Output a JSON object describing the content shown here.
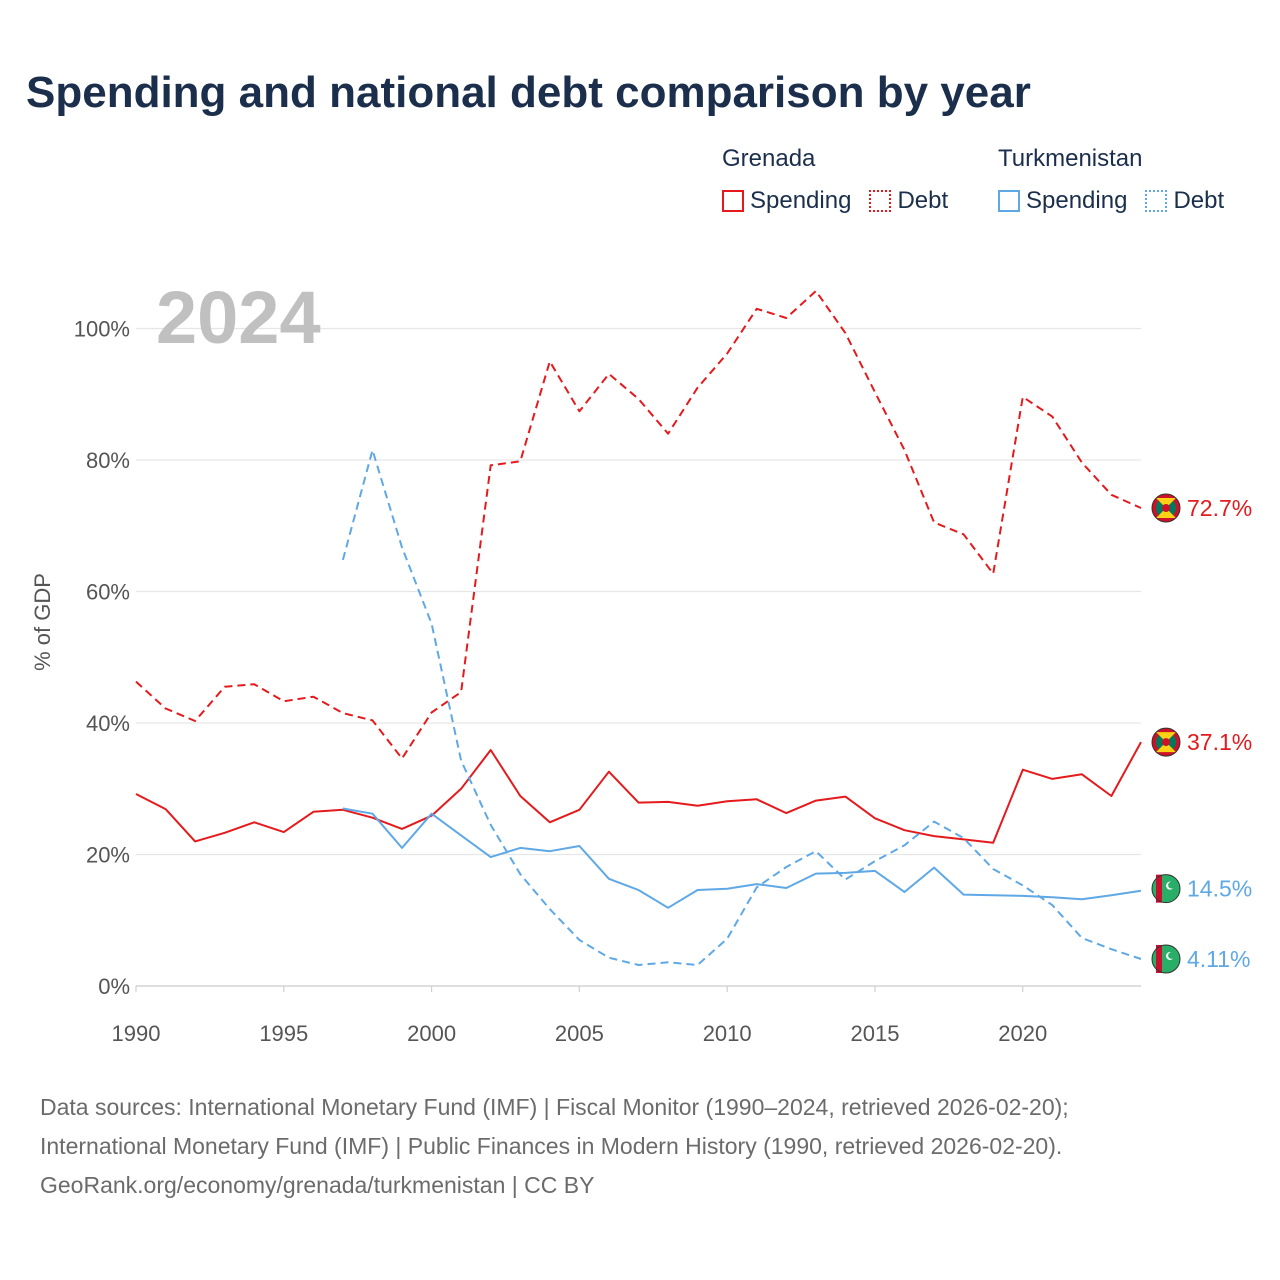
{
  "title": "Spending and national debt comparison by year",
  "legend": {
    "groups": [
      {
        "name": "Grenada",
        "color": "#e41a1c",
        "spending_label": "Spending",
        "debt_label": "Debt"
      },
      {
        "name": "Turkmenistan",
        "color": "#5fa8e6",
        "spending_label": "Spending",
        "debt_label": "Debt"
      }
    ]
  },
  "source": {
    "line1": "Data sources: International Monetary Fund (IMF) | Fiscal Monitor (1990–2024, retrieved 2026-02-20);",
    "line2": "International Monetary Fund (IMF) | Public Finances in Modern History (1990, retrieved 2026-02-20).",
    "line3": "GeoRank.org/economy/grenada/turkmenistan | CC BY"
  },
  "chart_data": {
    "type": "line",
    "title": "Spending and national debt comparison by year",
    "current_year_label": "2024",
    "xlabel": "",
    "ylabel": "% of GDP",
    "xlim": [
      1990,
      2024
    ],
    "ylim": [
      0,
      110
    ],
    "x_ticks": [
      1990,
      1995,
      2000,
      2005,
      2010,
      2015,
      2020
    ],
    "y_ticks": [
      0,
      20,
      40,
      60,
      80,
      100
    ],
    "y_tick_labels": [
      "0%",
      "20%",
      "40%",
      "60%",
      "80%",
      "100%"
    ],
    "grid": "horizontal",
    "series": [
      {
        "name": "Grenada Debt",
        "country": "Grenada",
        "style": "dashed",
        "color": "#e41a1c",
        "x": [
          1990,
          1991,
          1992,
          1993,
          1994,
          1995,
          1996,
          1997,
          1998,
          1999,
          2000,
          2001,
          2002,
          2003,
          2004,
          2005,
          2006,
          2007,
          2008,
          2009,
          2010,
          2011,
          2012,
          2013,
          2014,
          2015,
          2016,
          2017,
          2018,
          2019,
          2020,
          2021,
          2022,
          2023,
          2024
        ],
        "values": [
          46.3,
          42.2,
          40.3,
          45.5,
          45.9,
          43.3,
          44.0,
          41.5,
          40.4,
          34.6,
          41.6,
          44.7,
          79.2,
          79.8,
          95.0,
          87.4,
          93.1,
          89.3,
          84.0,
          91.0,
          96.2,
          103.0,
          101.6,
          105.7,
          99.3,
          90.3,
          81.5,
          70.5,
          68.7,
          62.7,
          89.6,
          86.6,
          79.6,
          74.7,
          72.7
        ],
        "end_label": "72.7%",
        "flag": "grenada"
      },
      {
        "name": "Grenada Spending",
        "country": "Grenada",
        "style": "solid",
        "color": "#e41a1c",
        "x": [
          1990,
          1991,
          1992,
          1993,
          1994,
          1995,
          1996,
          1997,
          1998,
          1999,
          2000,
          2001,
          2002,
          2003,
          2004,
          2005,
          2006,
          2007,
          2008,
          2009,
          2010,
          2011,
          2012,
          2013,
          2014,
          2015,
          2016,
          2017,
          2018,
          2019,
          2020,
          2021,
          2022,
          2023,
          2024
        ],
        "values": [
          29.2,
          26.9,
          22.0,
          23.3,
          24.9,
          23.4,
          26.5,
          26.8,
          25.6,
          23.9,
          25.9,
          30.0,
          35.9,
          28.9,
          24.9,
          26.8,
          32.6,
          27.9,
          28.0,
          27.4,
          28.1,
          28.4,
          26.3,
          28.2,
          28.8,
          25.5,
          23.7,
          22.8,
          22.3,
          21.8,
          32.9,
          31.5,
          32.2,
          28.9,
          37.1
        ],
        "end_label": "37.1%",
        "flag": "grenada"
      },
      {
        "name": "Turkmenistan Spending",
        "country": "Turkmenistan",
        "style": "solid",
        "color": "#5fa8e6",
        "x": [
          1997,
          1998,
          1999,
          2000,
          2001,
          2002,
          2003,
          2004,
          2005,
          2006,
          2007,
          2008,
          2009,
          2010,
          2011,
          2012,
          2013,
          2014,
          2015,
          2016,
          2017,
          2018,
          2019,
          2020,
          2021,
          2022,
          2023,
          2024
        ],
        "values": [
          27.0,
          26.2,
          21.0,
          26.2,
          22.9,
          19.6,
          21.0,
          20.5,
          21.3,
          16.3,
          14.6,
          11.9,
          14.6,
          14.8,
          15.5,
          14.9,
          17.1,
          17.2,
          17.5,
          14.3,
          18.0,
          13.9,
          13.8,
          13.7,
          13.5,
          13.2,
          13.8,
          14.5
        ],
        "end_label": "14.5%",
        "flag": "turkmenistan"
      },
      {
        "name": "Turkmenistan Debt",
        "country": "Turkmenistan",
        "style": "dashed",
        "color": "#5fa8e6",
        "x": [
          1997,
          1998,
          1999,
          2000,
          2001,
          2002,
          2003,
          2004,
          2005,
          2006,
          2007,
          2008,
          2009,
          2010,
          2011,
          2012,
          2013,
          2014,
          2015,
          2016,
          2017,
          2018,
          2019,
          2020,
          2021,
          2022,
          2023,
          2024
        ],
        "values": [
          64.8,
          81.5,
          66.7,
          55.1,
          34.3,
          24.5,
          17.0,
          11.7,
          7.0,
          4.3,
          3.2,
          3.6,
          3.2,
          7.2,
          15.0,
          18.1,
          20.5,
          16.2,
          19.0,
          21.4,
          25.0,
          22.5,
          17.8,
          15.3,
          12.3,
          7.3,
          5.6,
          4.11
        ],
        "end_label": "4.11%",
        "flag": "turkmenistan"
      }
    ]
  }
}
